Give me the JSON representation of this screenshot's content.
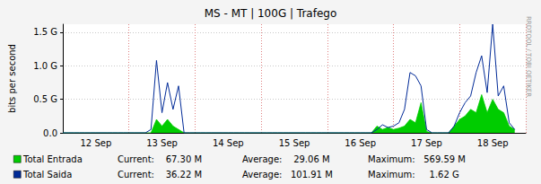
{
  "chart_data": {
    "type": "line",
    "title": "MS - MT | 100G | Trafego",
    "y_label": "bits per second",
    "annotations": [
      "RRDTOOL / TOBI OETIKER"
    ],
    "categories": [
      null,
      null,
      null,
      null,
      null,
      null,
      "12 Sep",
      null,
      null,
      null,
      null,
      null,
      null,
      null,
      null,
      null,
      null,
      null,
      "13 Sep",
      null,
      null,
      null,
      null,
      null,
      null,
      null,
      null,
      null,
      null,
      null,
      "14 Sep",
      null,
      null,
      null,
      null,
      null,
      null,
      null,
      null,
      null,
      null,
      null,
      "15 Sep",
      null,
      null,
      null,
      null,
      null,
      null,
      null,
      null,
      null,
      null,
      null,
      "16 Sep",
      null,
      null,
      null,
      null,
      null,
      null,
      null,
      null,
      null,
      null,
      null,
      "17 Sep",
      null,
      null,
      null,
      null,
      null,
      null,
      null,
      null,
      null,
      null,
      null,
      "18 Sep",
      null,
      null,
      null,
      null,
      null,
      null
    ],
    "ylim": [
      0,
      1620000000
    ],
    "yticks": [
      {
        "value": 0,
        "label": "0.0"
      },
      {
        "value": 500000000,
        "label": "0.5 G"
      },
      {
        "value": 1000000000,
        "label": "1.0 G"
      },
      {
        "value": 1500000000,
        "label": "1.5 G"
      }
    ],
    "grid": true,
    "series": [
      {
        "name": "Total Entrada",
        "type": "area",
        "color": "#00cc00",
        "annotations": [
          "Current:    67.30 M",
          "Average:    29.06 M",
          "Maximum:   569.59 M"
        ],
        "values": [
          0,
          0,
          0,
          0,
          0,
          0,
          0,
          0,
          0,
          0,
          0,
          0,
          0,
          0,
          0,
          0,
          0,
          200000000,
          100000000,
          200000000,
          100000000,
          50000000,
          0,
          0,
          0,
          0,
          0,
          0,
          0,
          0,
          0,
          0,
          0,
          0,
          0,
          0,
          0,
          0,
          0,
          0,
          0,
          0,
          0,
          0,
          0,
          0,
          0,
          0,
          0,
          0,
          0,
          0,
          0,
          0,
          0,
          0,
          0,
          100000000,
          50000000,
          80000000,
          50000000,
          70000000,
          100000000,
          200000000,
          150000000,
          450000000,
          20000000,
          0,
          0,
          0,
          0,
          100000000,
          200000000,
          250000000,
          350000000,
          300000000,
          569590000,
          300000000,
          500000000,
          350000000,
          300000000,
          100000000,
          50000000,
          null,
          null
        ]
      },
      {
        "name": "Total Saida",
        "type": "line",
        "color": "#002a97",
        "annotations": [
          "Current:    36.22 M",
          "Average:   101.91 M",
          "Maximum:     1.62 G"
        ],
        "values": [
          0,
          0,
          0,
          0,
          0,
          0,
          0,
          0,
          0,
          0,
          0,
          0,
          0,
          0,
          0,
          0,
          50000000,
          1080000000,
          300000000,
          750000000,
          350000000,
          700000000,
          0,
          0,
          0,
          0,
          0,
          0,
          0,
          0,
          0,
          0,
          0,
          0,
          0,
          0,
          0,
          0,
          0,
          0,
          0,
          0,
          0,
          0,
          0,
          0,
          0,
          0,
          0,
          0,
          0,
          0,
          0,
          0,
          0,
          0,
          0,
          50000000,
          120000000,
          80000000,
          100000000,
          150000000,
          350000000,
          900000000,
          850000000,
          700000000,
          50000000,
          0,
          0,
          0,
          0,
          100000000,
          300000000,
          450000000,
          550000000,
          900000000,
          1150000000,
          600000000,
          1620000000,
          550000000,
          700000000,
          150000000,
          50000000,
          null,
          null
        ]
      }
    ]
  }
}
